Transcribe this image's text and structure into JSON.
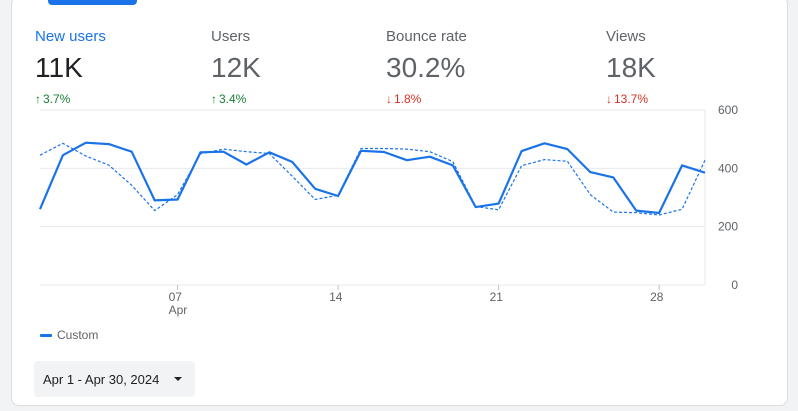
{
  "metrics": [
    {
      "label": "New users",
      "value": "11K",
      "delta": "3.7%",
      "direction": "up",
      "active": true
    },
    {
      "label": "Users",
      "value": "12K",
      "delta": "3.4%",
      "direction": "up",
      "active": false
    },
    {
      "label": "Bounce rate",
      "value": "30.2%",
      "delta": "1.8%",
      "direction": "down",
      "active": false
    },
    {
      "label": "Views",
      "value": "18K",
      "delta": "13.7%",
      "direction": "down",
      "active": false
    }
  ],
  "legend": {
    "label": "Custom"
  },
  "date_range": {
    "label": "Apr 1 - Apr 30, 2024"
  },
  "colors": {
    "accent": "#1a73e8",
    "up": "#188038",
    "down": "#d93025"
  },
  "chart_data": {
    "type": "line",
    "x_start_label": "Apr 1",
    "x": [
      1,
      2,
      3,
      4,
      5,
      6,
      7,
      8,
      9,
      10,
      11,
      12,
      13,
      14,
      15,
      16,
      17,
      18,
      19,
      20,
      21,
      22,
      23,
      24,
      25,
      26,
      27,
      28,
      29,
      30
    ],
    "xticks": [
      {
        "x": 7,
        "label": "07",
        "sublabel": "Apr"
      },
      {
        "x": 14,
        "label": "14"
      },
      {
        "x": 21,
        "label": "21"
      },
      {
        "x": 28,
        "label": "28"
      }
    ],
    "yticks": [
      0,
      200,
      400,
      600
    ],
    "ylim": [
      0,
      600
    ],
    "grid": true,
    "legend_position": "bottom-left",
    "series": [
      {
        "name": "Custom",
        "style": "solid",
        "values": [
          260,
          445,
          488,
          483,
          457,
          290,
          293,
          455,
          457,
          413,
          455,
          422,
          330,
          305,
          460,
          456,
          428,
          440,
          410,
          267,
          279,
          459,
          486,
          466,
          387,
          369,
          255,
          247,
          410,
          385
        ]
      },
      {
        "name": "",
        "style": "dashed",
        "values": [
          445,
          486,
          442,
          411,
          342,
          255,
          310,
          450,
          466,
          457,
          451,
          373,
          293,
          308,
          468,
          468,
          466,
          457,
          423,
          269,
          258,
          409,
          430,
          424,
          310,
          250,
          248,
          240,
          260,
          428
        ]
      }
    ]
  }
}
